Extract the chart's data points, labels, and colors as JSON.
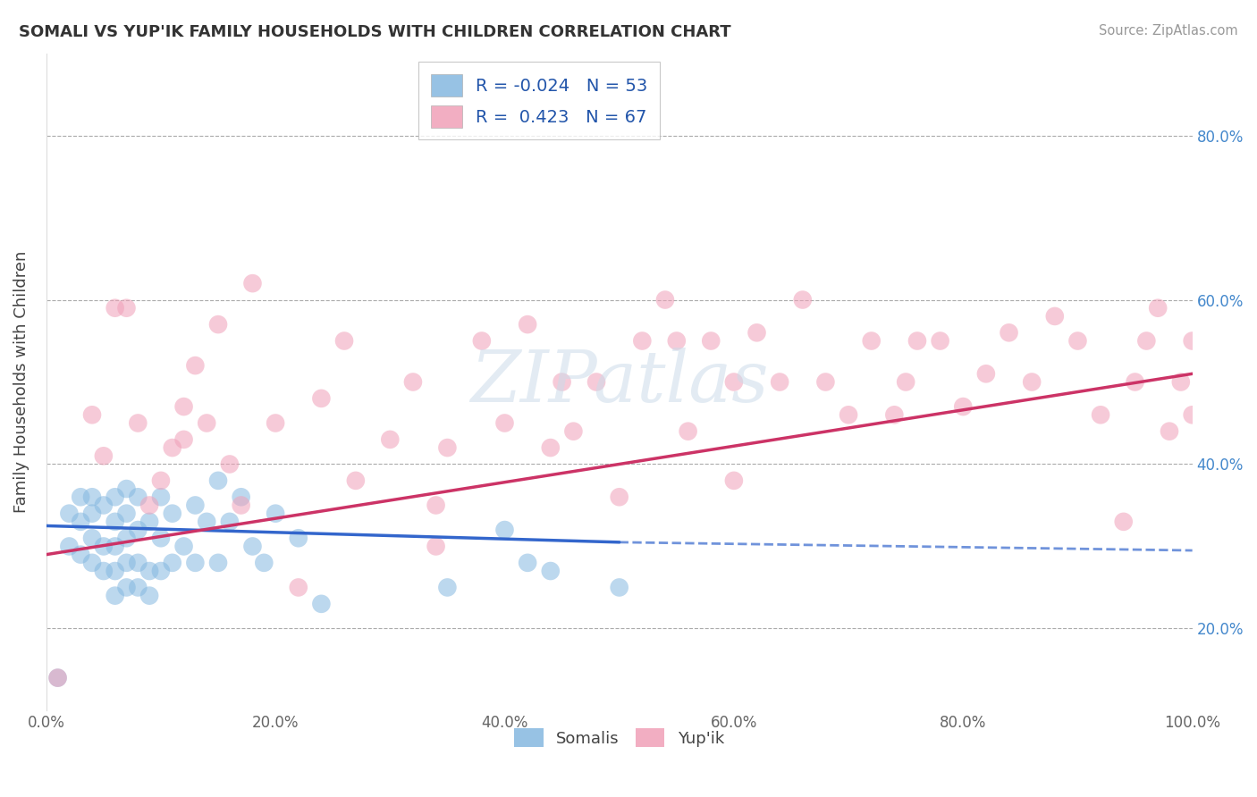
{
  "title": "SOMALI VS YUP'IK FAMILY HOUSEHOLDS WITH CHILDREN CORRELATION CHART",
  "source": "Source: ZipAtlas.com",
  "ylabel": "Family Households with Children",
  "xlim": [
    0,
    100
  ],
  "ylim": [
    10,
    90
  ],
  "background_color": "#ffffff",
  "grid_color": "#cccccc",
  "somali_color": "#85b8e0",
  "yupik_color": "#f0a0b8",
  "somali_line_color": "#3366cc",
  "yupik_line_color": "#cc3366",
  "somali_R": -0.024,
  "somali_N": 53,
  "yupik_R": 0.423,
  "yupik_N": 67,
  "somali_x": [
    1,
    2,
    2,
    3,
    3,
    3,
    4,
    4,
    4,
    4,
    5,
    5,
    5,
    6,
    6,
    6,
    6,
    6,
    7,
    7,
    7,
    7,
    7,
    8,
    8,
    8,
    8,
    9,
    9,
    9,
    10,
    10,
    10,
    11,
    11,
    12,
    13,
    13,
    14,
    15,
    15,
    16,
    17,
    18,
    19,
    20,
    22,
    24,
    35,
    40,
    42,
    44,
    50
  ],
  "somali_y": [
    14,
    30,
    34,
    29,
    33,
    36,
    28,
    31,
    34,
    36,
    27,
    30,
    35,
    24,
    27,
    30,
    33,
    36,
    25,
    28,
    31,
    34,
    37,
    25,
    28,
    32,
    36,
    24,
    27,
    33,
    27,
    31,
    36,
    28,
    34,
    30,
    28,
    35,
    33,
    28,
    38,
    33,
    36,
    30,
    28,
    34,
    31,
    23,
    25,
    32,
    28,
    27,
    25
  ],
  "yupik_x": [
    1,
    4,
    5,
    6,
    7,
    8,
    9,
    10,
    11,
    12,
    12,
    13,
    14,
    15,
    16,
    17,
    18,
    20,
    22,
    24,
    26,
    27,
    30,
    32,
    34,
    34,
    35,
    38,
    40,
    42,
    44,
    45,
    46,
    48,
    50,
    52,
    54,
    55,
    56,
    58,
    60,
    60,
    62,
    64,
    66,
    68,
    70,
    72,
    74,
    75,
    76,
    78,
    80,
    82,
    84,
    86,
    88,
    90,
    92,
    94,
    95,
    96,
    97,
    98,
    99,
    100,
    100
  ],
  "yupik_y": [
    14,
    46,
    41,
    59,
    59,
    45,
    35,
    38,
    42,
    47,
    43,
    52,
    45,
    57,
    40,
    35,
    62,
    45,
    25,
    48,
    55,
    38,
    43,
    50,
    35,
    30,
    42,
    55,
    45,
    57,
    42,
    50,
    44,
    50,
    36,
    55,
    60,
    55,
    44,
    55,
    50,
    38,
    56,
    50,
    60,
    50,
    46,
    55,
    46,
    50,
    55,
    55,
    47,
    51,
    56,
    50,
    58,
    55,
    46,
    33,
    50,
    55,
    59,
    44,
    50,
    46,
    55
  ],
  "somali_line_x0": 0,
  "somali_line_x1": 50,
  "somali_line_y0": 32.5,
  "somali_line_y1": 30.5,
  "somali_dash_x0": 50,
  "somali_dash_x1": 100,
  "somali_dash_y0": 30.5,
  "somali_dash_y1": 29.5,
  "yupik_line_x0": 0,
  "yupik_line_x1": 100,
  "yupik_line_y0": 29,
  "yupik_line_y1": 51,
  "watermark_text": "ZIPatlas",
  "legend_label_somali": "R = -0.024   N = 53",
  "legend_label_yupik": "R =  0.423   N = 67"
}
